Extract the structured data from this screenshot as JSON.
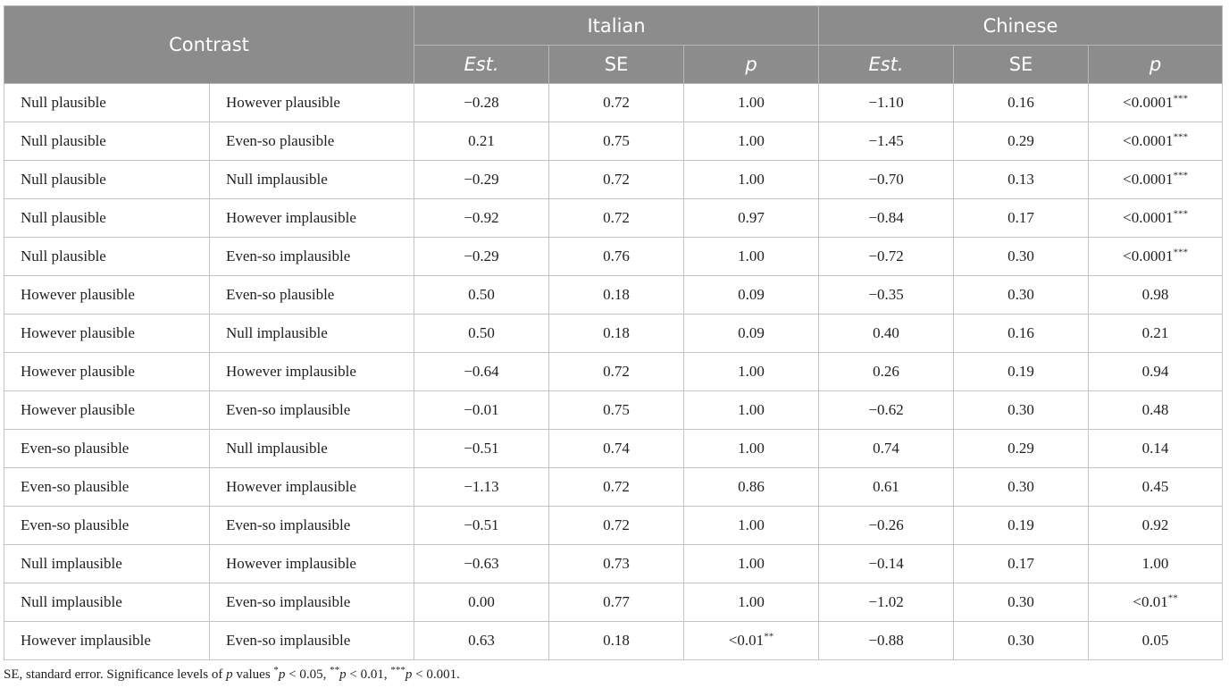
{
  "header": {
    "contrast": "Contrast",
    "groups": [
      "Italian",
      "Chinese"
    ],
    "sub": [
      "Est.",
      "SE",
      "p",
      "Est.",
      "SE",
      "p"
    ]
  },
  "rows": [
    {
      "a": "Null plausible",
      "b": "However plausible",
      "it_est": "−0.28",
      "it_se": "0.72",
      "it_p": "1.00",
      "it_sig": "",
      "cn_est": "−1.10",
      "cn_se": "0.16",
      "cn_p": "<0.0001",
      "cn_sig": "***"
    },
    {
      "a": "Null plausible",
      "b": "Even-so plausible",
      "it_est": "0.21",
      "it_se": "0.75",
      "it_p": "1.00",
      "it_sig": "",
      "cn_est": "−1.45",
      "cn_se": "0.29",
      "cn_p": "<0.0001",
      "cn_sig": "***"
    },
    {
      "a": "Null plausible",
      "b": "Null implausible",
      "it_est": "−0.29",
      "it_se": "0.72",
      "it_p": "1.00",
      "it_sig": "",
      "cn_est": "−0.70",
      "cn_se": "0.13",
      "cn_p": "<0.0001",
      "cn_sig": "***"
    },
    {
      "a": "Null plausible",
      "b": "However implausible",
      "it_est": "−0.92",
      "it_se": "0.72",
      "it_p": "0.97",
      "it_sig": "",
      "cn_est": "−0.84",
      "cn_se": "0.17",
      "cn_p": "<0.0001",
      "cn_sig": "***"
    },
    {
      "a": "Null plausible",
      "b": "Even-so implausible",
      "it_est": "−0.29",
      "it_se": "0.76",
      "it_p": "1.00",
      "it_sig": "",
      "cn_est": "−0.72",
      "cn_se": "0.30",
      "cn_p": "<0.0001",
      "cn_sig": "***"
    },
    {
      "a": "However plausible",
      "b": "Even-so plausible",
      "it_est": "0.50",
      "it_se": "0.18",
      "it_p": "0.09",
      "it_sig": "",
      "cn_est": "−0.35",
      "cn_se": "0.30",
      "cn_p": "0.98",
      "cn_sig": ""
    },
    {
      "a": "However plausible",
      "b": "Null implausible",
      "it_est": "0.50",
      "it_se": "0.18",
      "it_p": "0.09",
      "it_sig": "",
      "cn_est": "0.40",
      "cn_se": "0.16",
      "cn_p": "0.21",
      "cn_sig": ""
    },
    {
      "a": "However plausible",
      "b": "However implausible",
      "it_est": "−0.64",
      "it_se": "0.72",
      "it_p": "1.00",
      "it_sig": "",
      "cn_est": "0.26",
      "cn_se": "0.19",
      "cn_p": "0.94",
      "cn_sig": ""
    },
    {
      "a": "However plausible",
      "b": "Even-so implausible",
      "it_est": "−0.01",
      "it_se": "0.75",
      "it_p": "1.00",
      "it_sig": "",
      "cn_est": "−0.62",
      "cn_se": "0.30",
      "cn_p": "0.48",
      "cn_sig": ""
    },
    {
      "a": "Even-so plausible",
      "b": "Null implausible",
      "it_est": "−0.51",
      "it_se": "0.74",
      "it_p": "1.00",
      "it_sig": "",
      "cn_est": "0.74",
      "cn_se": "0.29",
      "cn_p": "0.14",
      "cn_sig": ""
    },
    {
      "a": "Even-so plausible",
      "b": "However implausible",
      "it_est": "−1.13",
      "it_se": "0.72",
      "it_p": "0.86",
      "it_sig": "",
      "cn_est": "0.61",
      "cn_se": "0.30",
      "cn_p": "0.45",
      "cn_sig": ""
    },
    {
      "a": "Even-so plausible",
      "b": "Even-so implausible",
      "it_est": "−0.51",
      "it_se": "0.72",
      "it_p": "1.00",
      "it_sig": "",
      "cn_est": "−0.26",
      "cn_se": "0.19",
      "cn_p": "0.92",
      "cn_sig": ""
    },
    {
      "a": "Null implausible",
      "b": "However implausible",
      "it_est": "−0.63",
      "it_se": "0.73",
      "it_p": "1.00",
      "it_sig": "",
      "cn_est": "−0.14",
      "cn_se": "0.17",
      "cn_p": "1.00",
      "cn_sig": ""
    },
    {
      "a": "Null implausible",
      "b": "Even-so implausible",
      "it_est": "0.00",
      "it_se": "0.77",
      "it_p": "1.00",
      "it_sig": "",
      "cn_est": "−1.02",
      "cn_se": "0.30",
      "cn_p": "<0.01",
      "cn_sig": "**"
    },
    {
      "a": "However implausible",
      "b": "Even-so implausible",
      "it_est": "0.63",
      "it_se": "0.18",
      "it_p": "<0.01",
      "it_sig": "**",
      "cn_est": "−0.88",
      "cn_se": "0.30",
      "cn_p": "0.05",
      "cn_sig": ""
    }
  ],
  "footnote": {
    "t1": "SE, standard error. Significance levels of ",
    "p1": "p",
    "t2": " values ",
    "s1": "*",
    "p2": "p",
    "t3": " < 0.05, ",
    "s2": "**",
    "p3": "p",
    "t4": " < 0.01, ",
    "s3": "***",
    "p4": "p",
    "t5": " < 0.001."
  }
}
